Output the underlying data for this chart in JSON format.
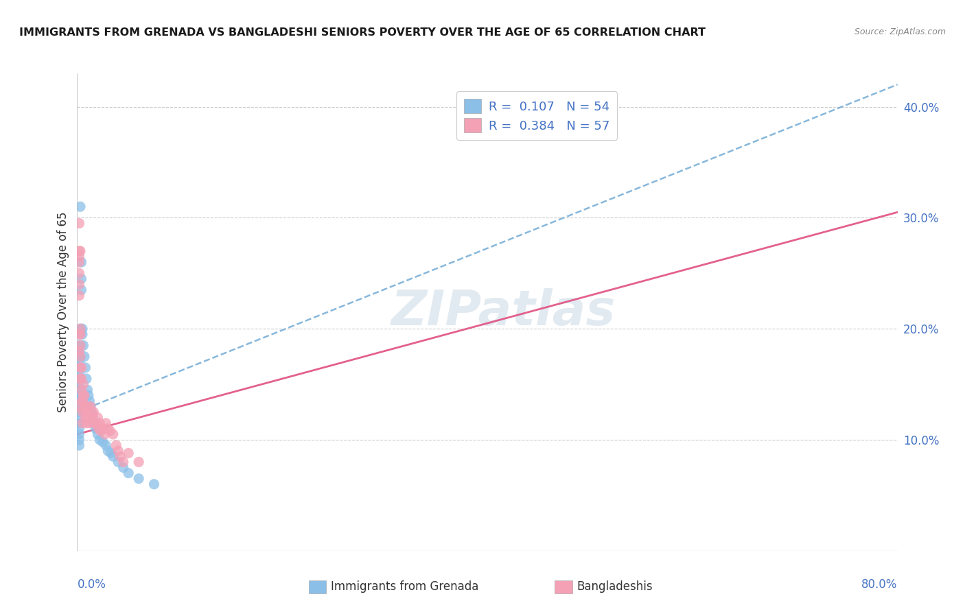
{
  "title": "IMMIGRANTS FROM GRENADA VS BANGLADESHI SENIORS POVERTY OVER THE AGE OF 65 CORRELATION CHART",
  "source": "Source: ZipAtlas.com",
  "ylabel": "Seniors Poverty Over the Age of 65",
  "xlim": [
    0.0,
    0.8
  ],
  "ylim": [
    0.0,
    0.43
  ],
  "yticks_right": [
    0.1,
    0.2,
    0.3,
    0.4
  ],
  "ytick_labels_right": [
    "10.0%",
    "20.0%",
    "30.0%",
    "40.0%"
  ],
  "watermark": "ZIPatlas",
  "color_grenada": "#8bbfe8",
  "color_bangladeshi": "#f4a0b5",
  "color_grenada_line": "#7ab0d8",
  "color_bangladeshi_line": "#e05080",
  "grenada_line_y_start": 0.125,
  "grenada_line_y_end": 0.42,
  "bangladeshi_line_y_start": 0.105,
  "bangladeshi_line_y_end": 0.305,
  "scatter_grenada_x": [
    0.002,
    0.002,
    0.002,
    0.002,
    0.002,
    0.002,
    0.002,
    0.002,
    0.002,
    0.002,
    0.002,
    0.002,
    0.002,
    0.002,
    0.002,
    0.002,
    0.002,
    0.002,
    0.002,
    0.002,
    0.003,
    0.003,
    0.003,
    0.003,
    0.003,
    0.004,
    0.004,
    0.004,
    0.005,
    0.005,
    0.006,
    0.007,
    0.008,
    0.009,
    0.01,
    0.011,
    0.012,
    0.013,
    0.014,
    0.015,
    0.016,
    0.018,
    0.02,
    0.022,
    0.025,
    0.028,
    0.03,
    0.033,
    0.035,
    0.04,
    0.045,
    0.05,
    0.06,
    0.075
  ],
  "scatter_grenada_y": [
    0.195,
    0.185,
    0.18,
    0.175,
    0.17,
    0.165,
    0.16,
    0.155,
    0.15,
    0.145,
    0.14,
    0.135,
    0.13,
    0.125,
    0.12,
    0.115,
    0.11,
    0.105,
    0.1,
    0.095,
    0.31,
    0.2,
    0.195,
    0.185,
    0.175,
    0.26,
    0.245,
    0.235,
    0.2,
    0.195,
    0.185,
    0.175,
    0.165,
    0.155,
    0.145,
    0.14,
    0.135,
    0.13,
    0.125,
    0.12,
    0.115,
    0.11,
    0.105,
    0.1,
    0.098,
    0.095,
    0.09,
    0.088,
    0.085,
    0.08,
    0.075,
    0.07,
    0.065,
    0.06
  ],
  "scatter_bangladeshi_x": [
    0.002,
    0.002,
    0.002,
    0.002,
    0.002,
    0.002,
    0.002,
    0.002,
    0.002,
    0.002,
    0.003,
    0.003,
    0.003,
    0.003,
    0.003,
    0.003,
    0.003,
    0.004,
    0.004,
    0.004,
    0.005,
    0.005,
    0.005,
    0.005,
    0.006,
    0.006,
    0.007,
    0.007,
    0.008,
    0.008,
    0.009,
    0.01,
    0.011,
    0.012,
    0.013,
    0.014,
    0.015,
    0.016,
    0.017,
    0.018,
    0.02,
    0.021,
    0.022,
    0.023,
    0.025,
    0.027,
    0.028,
    0.03,
    0.032,
    0.035,
    0.038,
    0.04,
    0.042,
    0.045,
    0.05,
    0.06,
    0.375
  ],
  "scatter_bangladeshi_y": [
    0.295,
    0.27,
    0.265,
    0.26,
    0.25,
    0.24,
    0.23,
    0.195,
    0.18,
    0.13,
    0.27,
    0.2,
    0.195,
    0.185,
    0.175,
    0.165,
    0.155,
    0.165,
    0.155,
    0.145,
    0.135,
    0.135,
    0.125,
    0.115,
    0.15,
    0.14,
    0.14,
    0.13,
    0.125,
    0.12,
    0.115,
    0.13,
    0.12,
    0.115,
    0.13,
    0.125,
    0.12,
    0.125,
    0.115,
    0.115,
    0.12,
    0.11,
    0.115,
    0.108,
    0.11,
    0.105,
    0.115,
    0.11,
    0.108,
    0.105,
    0.095,
    0.09,
    0.085,
    0.08,
    0.088,
    0.08,
    0.385
  ]
}
